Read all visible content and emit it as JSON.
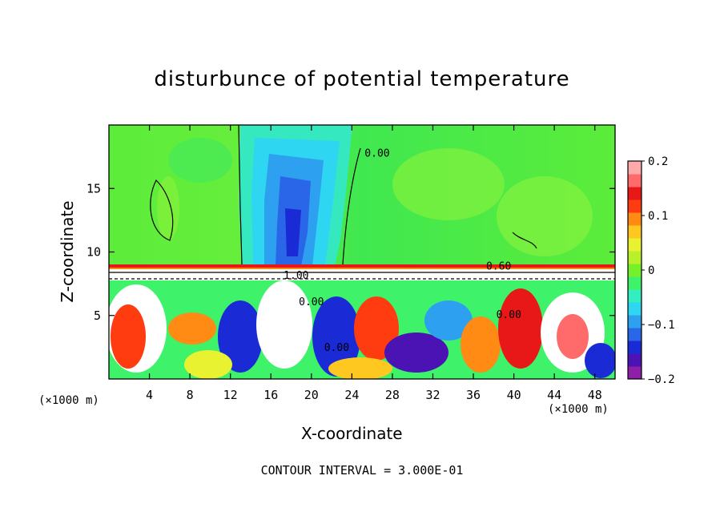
{
  "chart_data": {
    "type": "heatmap",
    "title": "disturbunce of potential temperature",
    "xlabel": "X-coordinate",
    "ylabel": "Z-coordinate",
    "x_unit_label": "(×1000 m)",
    "x_unit_label_right": "(×1000 m)",
    "footer": "CONTOUR INTERVAL = 3.000E-01",
    "xlim": [
      0,
      50
    ],
    "ylim": [
      0,
      20
    ],
    "x_ticks": [
      "4",
      "8",
      "12",
      "16",
      "20",
      "24",
      "28",
      "32",
      "36",
      "40",
      "44",
      "48"
    ],
    "x_tick_values": [
      4,
      8,
      12,
      16,
      20,
      24,
      28,
      32,
      36,
      40,
      44,
      48
    ],
    "y_ticks": [
      "5",
      "10",
      "15"
    ],
    "y_tick_values": [
      5,
      10,
      15
    ],
    "colorbar": {
      "min": -0.2,
      "max": 0.2,
      "tick_labels": [
        "0.2",
        "0.1",
        "0",
        "−0.1",
        "−0.2"
      ],
      "tick_values": [
        0.2,
        0.1,
        0,
        -0.1,
        -0.2
      ],
      "colors": [
        "#8e1fa8",
        "#4b13b4",
        "#1a2bd6",
        "#2a66e8",
        "#2ea0f0",
        "#2fd6f2",
        "#33efc0",
        "#3ef26a",
        "#76f02a",
        "#b8f02a",
        "#e8f230",
        "#ffc820",
        "#ff8a14",
        "#ff3c10",
        "#e81818",
        "#ff6a6a",
        "#ffaaaa"
      ]
    },
    "contour_labels": [
      {
        "text": "0.00",
        "x": 26.5,
        "y": 17.5
      },
      {
        "text": "0.60",
        "x": 38.5,
        "y": 8.6
      },
      {
        "text": "1.00",
        "x": 18.5,
        "y": 7.9
      },
      {
        "text": "0.00",
        "x": 20.0,
        "y": 5.8
      },
      {
        "text": "0.00",
        "x": 22.5,
        "y": 2.2
      },
      {
        "text": "0.00",
        "x": 39.5,
        "y": 4.8
      }
    ]
  }
}
